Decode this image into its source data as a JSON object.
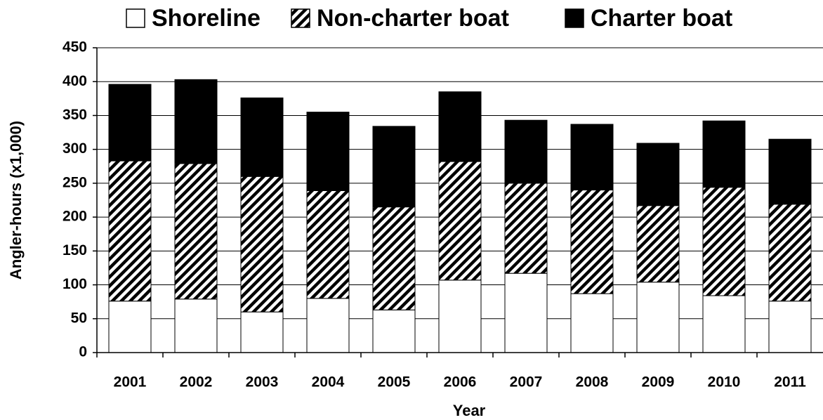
{
  "chart_data": {
    "type": "stacked_bar",
    "x_label": "Year",
    "y_label": "Angler-hours (x1,000)",
    "categories": [
      "2001",
      "2002",
      "2003",
      "2004",
      "2005",
      "2006",
      "2007",
      "2008",
      "2009",
      "2010",
      "2011"
    ],
    "series": [
      {
        "name": "Shoreline",
        "color": "#ffffff",
        "pattern": "solid",
        "values": [
          76,
          79,
          60,
          80,
          63,
          107,
          117,
          87,
          104,
          84,
          76
        ]
      },
      {
        "name": "Non-charter boat",
        "color": "#000000",
        "pattern": "hatch",
        "values": [
          207,
          200,
          200,
          159,
          152,
          175,
          133,
          153,
          113,
          160,
          143
        ]
      },
      {
        "name": "Charter boat",
        "color": "#000000",
        "pattern": "solid",
        "values": [
          113,
          124,
          116,
          116,
          119,
          103,
          93,
          97,
          92,
          98,
          96
        ]
      }
    ],
    "ylim": [
      0,
      450
    ],
    "yticks": [
      0,
      50,
      100,
      150,
      200,
      250,
      300,
      350,
      400,
      450
    ],
    "grid": true,
    "legend": "top"
  }
}
